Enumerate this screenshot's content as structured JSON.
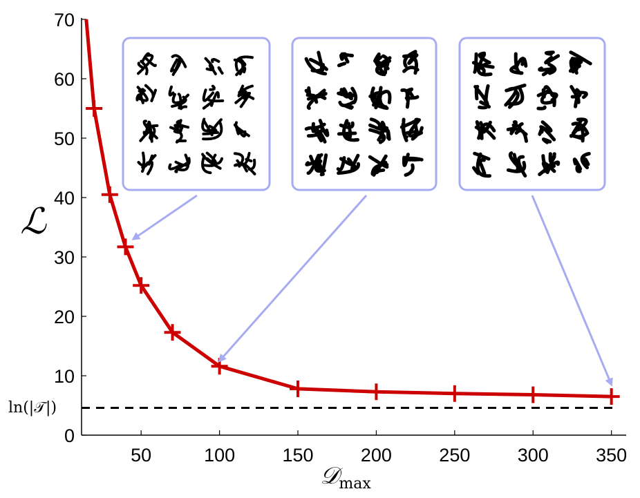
{
  "chart_data": {
    "type": "line",
    "xlabel": "𝒟",
    "xlabel_sub": "max",
    "ylabel": "ℒ",
    "xlim": [
      12,
      355
    ],
    "ylim": [
      0,
      70
    ],
    "xticks": [
      "50",
      "100",
      "150",
      "200",
      "250",
      "300",
      "350"
    ],
    "yticks": [
      "0",
      "10",
      "20",
      "30",
      "40",
      "50",
      "60",
      "70"
    ],
    "grid": false,
    "series": [
      {
        "color": "#cc0000",
        "marker": "plus",
        "x": [
          20,
          30,
          40,
          50,
          70,
          100,
          150,
          200,
          250,
          300,
          350
        ],
        "y": [
          55,
          40.5,
          31.7,
          25.2,
          17.3,
          11.6,
          7.8,
          7.3,
          7.0,
          6.8,
          6.5
        ]
      }
    ],
    "reference_line": {
      "label": "ln(|𝒯|)",
      "y": 4.6,
      "style": "dashed",
      "color": "#000000"
    },
    "insets": [
      {
        "description": "digit samples grid 4x4",
        "points_to": {
          "x": 45,
          "y": 33
        }
      },
      {
        "description": "digit samples grid 4x4",
        "points_to": {
          "x": 100,
          "y": 12.5
        }
      },
      {
        "description": "digit samples grid 4x4",
        "points_to": {
          "x": 350,
          "y": 8.5
        }
      }
    ],
    "extra_start_point": {
      "x": 15,
      "y": 70
    },
    "colors": {
      "line": "#cc0000",
      "inset_border": "#a7abf2",
      "arrow": "#a7abf2"
    }
  }
}
